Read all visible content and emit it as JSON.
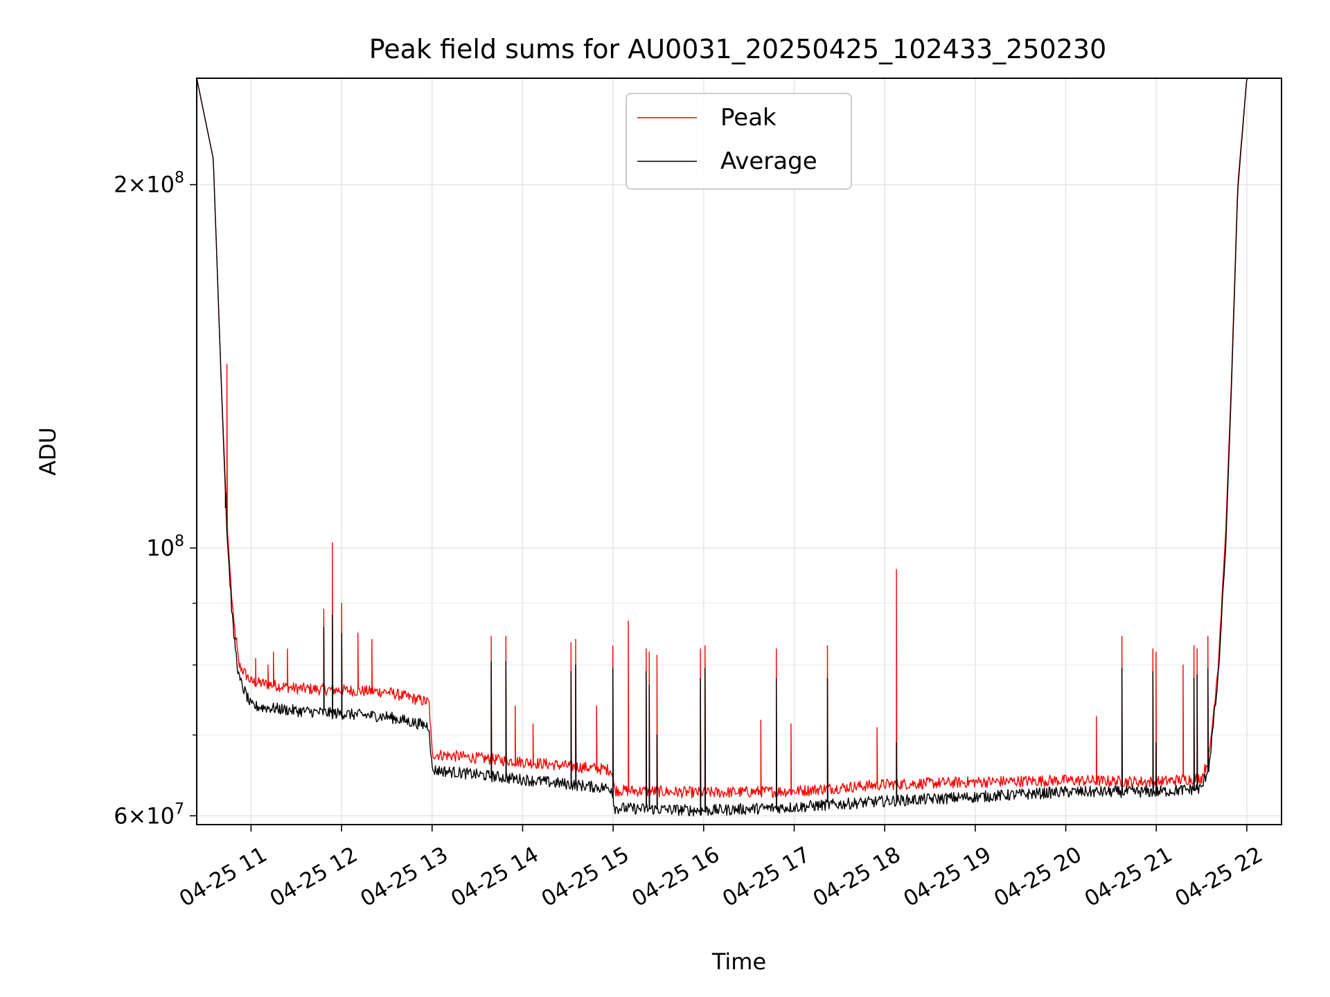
{
  "chart_data": {
    "type": "line",
    "title": "Peak field sums for AU0031_20250425_102433_250230",
    "xlabel": "Time",
    "ylabel": "ADU",
    "yscale": "log",
    "ylim": [
      59000000,
      245000000
    ],
    "xlim": [
      "2025-04-25 10:24",
      "2025-04-25 22:23"
    ],
    "grid": true,
    "legend": "top-center",
    "x_ticks": [
      {
        "t": "2025-04-25 11:00",
        "label": "04-25 11"
      },
      {
        "t": "2025-04-25 12:00",
        "label": "04-25 12"
      },
      {
        "t": "2025-04-25 13:00",
        "label": "04-25 13"
      },
      {
        "t": "2025-04-25 14:00",
        "label": "04-25 14"
      },
      {
        "t": "2025-04-25 15:00",
        "label": "04-25 15"
      },
      {
        "t": "2025-04-25 16:00",
        "label": "04-25 16"
      },
      {
        "t": "2025-04-25 17:00",
        "label": "04-25 17"
      },
      {
        "t": "2025-04-25 18:00",
        "label": "04-25 18"
      },
      {
        "t": "2025-04-25 19:00",
        "label": "04-25 19"
      },
      {
        "t": "2025-04-25 20:00",
        "label": "04-25 20"
      },
      {
        "t": "2025-04-25 21:00",
        "label": "04-25 21"
      },
      {
        "t": "2025-04-25 22:00",
        "label": "04-25 22"
      }
    ],
    "y_major_ticks": [
      {
        "value": 60000000,
        "base": "6",
        "exp": "7"
      },
      {
        "value": 100000000,
        "base": "",
        "exp": "8"
      },
      {
        "value": 200000000,
        "base": "2",
        "exp": "8"
      }
    ],
    "y_minor_ticks": [
      70000000,
      80000000,
      90000000
    ],
    "series": [
      {
        "name": "Peak",
        "color": "#ff0000",
        "baseline": [
          [
            "2025-04-25 10:24",
            245000000
          ],
          [
            "2025-04-25 10:35",
            210000000
          ],
          [
            "2025-04-25 10:40",
            140000000
          ],
          [
            "2025-04-25 10:44",
            105000000
          ],
          [
            "2025-04-25 10:48",
            88000000
          ],
          [
            "2025-04-25 10:52",
            80000000
          ],
          [
            "2025-04-25 11:00",
            77500000
          ],
          [
            "2025-04-25 11:30",
            76500000
          ],
          [
            "2025-04-25 12:30",
            76000000
          ],
          [
            "2025-04-25 12:58",
            74500000
          ],
          [
            "2025-04-25 13:00",
            67500000
          ],
          [
            "2025-04-25 14:00",
            66500000
          ],
          [
            "2025-04-25 14:59",
            65500000
          ],
          [
            "2025-04-25 15:01",
            63000000
          ],
          [
            "2025-04-25 16:00",
            62700000
          ],
          [
            "2025-04-25 17:00",
            62900000
          ],
          [
            "2025-04-25 18:00",
            63700000
          ],
          [
            "2025-04-25 19:00",
            64000000
          ],
          [
            "2025-04-25 20:00",
            64200000
          ],
          [
            "2025-04-25 21:00",
            64000000
          ],
          [
            "2025-04-25 21:30",
            64500000
          ],
          [
            "2025-04-25 21:35",
            67000000
          ],
          [
            "2025-04-25 21:41",
            80000000
          ],
          [
            "2025-04-25 21:46",
            103000000
          ],
          [
            "2025-04-25 21:50",
            140000000
          ],
          [
            "2025-04-25 21:54",
            200000000
          ],
          [
            "2025-04-25 22:00",
            245000000
          ],
          [
            "2025-04-25 22:23",
            245000000
          ]
        ],
        "spikes": [
          [
            "2025-04-25 10:44",
            142000000
          ],
          [
            "2025-04-25 10:50",
            84000000
          ],
          [
            "2025-04-25 11:03",
            81000000
          ],
          [
            "2025-04-25 11:11",
            80000000
          ],
          [
            "2025-04-25 11:15",
            82000000
          ],
          [
            "2025-04-25 11:24",
            82500000
          ],
          [
            "2025-04-25 11:48",
            89000000
          ],
          [
            "2025-04-25 11:54",
            101000000
          ],
          [
            "2025-04-25 12:00",
            90000000
          ],
          [
            "2025-04-25 12:11",
            85000000
          ],
          [
            "2025-04-25 12:20",
            84000000
          ],
          [
            "2025-04-25 13:39",
            84500000
          ],
          [
            "2025-04-25 13:49",
            84500000
          ],
          [
            "2025-04-25 13:55",
            74000000
          ],
          [
            "2025-04-25 14:07",
            71500000
          ],
          [
            "2025-04-25 14:32",
            83500000
          ],
          [
            "2025-04-25 14:35",
            84000000
          ],
          [
            "2025-04-25 14:49",
            74000000
          ],
          [
            "2025-04-25 15:00",
            83000000
          ],
          [
            "2025-04-25 15:10",
            87000000
          ],
          [
            "2025-04-25 15:22",
            82500000
          ],
          [
            "2025-04-25 15:24",
            82000000
          ],
          [
            "2025-04-25 15:29",
            81500000
          ],
          [
            "2025-04-25 15:58",
            82500000
          ],
          [
            "2025-04-25 16:01",
            83000000
          ],
          [
            "2025-04-25 16:38",
            72000000
          ],
          [
            "2025-04-25 16:48",
            82500000
          ],
          [
            "2025-04-25 16:58",
            71500000
          ],
          [
            "2025-04-25 17:22",
            83000000
          ],
          [
            "2025-04-25 17:55",
            71000000
          ],
          [
            "2025-04-25 18:08",
            96000000
          ],
          [
            "2025-04-25 20:20",
            72500000
          ],
          [
            "2025-04-25 20:37",
            84500000
          ],
          [
            "2025-04-25 20:58",
            82500000
          ],
          [
            "2025-04-25 21:00",
            82000000
          ],
          [
            "2025-04-25 21:18",
            80000000
          ],
          [
            "2025-04-25 21:25",
            83000000
          ],
          [
            "2025-04-25 21:27",
            82500000
          ],
          [
            "2025-04-25 21:34",
            84500000
          ]
        ]
      },
      {
        "name": "Average",
        "color": "#000000",
        "baseline": [
          [
            "2025-04-25 10:24",
            245000000
          ],
          [
            "2025-04-25 10:35",
            210000000
          ],
          [
            "2025-04-25 10:40",
            140000000
          ],
          [
            "2025-04-25 10:44",
            103000000
          ],
          [
            "2025-04-25 10:48",
            86000000
          ],
          [
            "2025-04-25 10:52",
            78000000
          ],
          [
            "2025-04-25 11:00",
            74000000
          ],
          [
            "2025-04-25 11:30",
            73300000
          ],
          [
            "2025-04-25 12:30",
            72500000
          ],
          [
            "2025-04-25 12:58",
            71200000
          ],
          [
            "2025-04-25 13:00",
            65500000
          ],
          [
            "2025-04-25 14:00",
            64300000
          ],
          [
            "2025-04-25 14:59",
            63200000
          ],
          [
            "2025-04-25 15:01",
            60900000
          ],
          [
            "2025-04-25 16:00",
            60600000
          ],
          [
            "2025-04-25 17:00",
            61000000
          ],
          [
            "2025-04-25 18:00",
            61700000
          ],
          [
            "2025-04-25 19:00",
            62200000
          ],
          [
            "2025-04-25 20:00",
            62800000
          ],
          [
            "2025-04-25 21:00",
            62800000
          ],
          [
            "2025-04-25 21:30",
            63200000
          ],
          [
            "2025-04-25 21:35",
            66000000
          ],
          [
            "2025-04-25 21:41",
            78000000
          ],
          [
            "2025-04-25 21:46",
            100000000
          ],
          [
            "2025-04-25 21:50",
            138000000
          ],
          [
            "2025-04-25 21:54",
            198000000
          ],
          [
            "2025-04-25 22:00",
            245000000
          ],
          [
            "2025-04-25 22:23",
            245000000
          ]
        ],
        "spikes": [
          [
            "2025-04-25 10:43",
            108000000
          ],
          [
            "2025-04-25 11:48",
            86000000
          ],
          [
            "2025-04-25 11:54",
            88000000
          ],
          [
            "2025-04-25 12:00",
            85000000
          ],
          [
            "2025-04-25 13:39",
            80500000
          ],
          [
            "2025-04-25 13:49",
            80500000
          ],
          [
            "2025-04-25 14:32",
            79000000
          ],
          [
            "2025-04-25 14:35",
            80000000
          ],
          [
            "2025-04-25 15:00",
            79500000
          ],
          [
            "2025-04-25 15:22",
            79000000
          ],
          [
            "2025-04-25 15:24",
            77000000
          ],
          [
            "2025-04-25 15:29",
            70000000
          ],
          [
            "2025-04-25 15:58",
            78000000
          ],
          [
            "2025-04-25 16:01",
            79500000
          ],
          [
            "2025-04-25 16:48",
            78000000
          ],
          [
            "2025-04-25 17:22",
            78000000
          ],
          [
            "2025-04-25 18:08",
            69000000
          ],
          [
            "2025-04-25 20:37",
            79500000
          ],
          [
            "2025-04-25 20:58",
            79000000
          ],
          [
            "2025-04-25 21:00",
            69000000
          ],
          [
            "2025-04-25 21:25",
            78000000
          ],
          [
            "2025-04-25 21:27",
            78500000
          ],
          [
            "2025-04-25 21:34",
            79500000
          ]
        ]
      }
    ]
  }
}
